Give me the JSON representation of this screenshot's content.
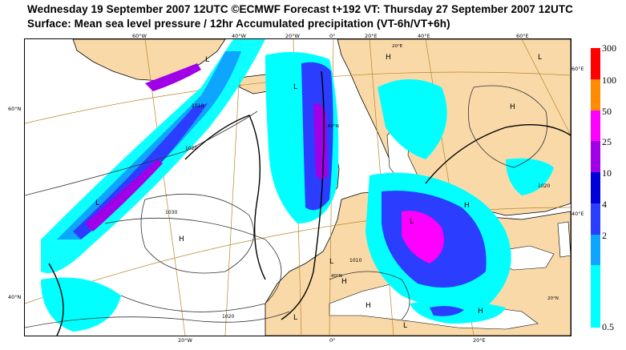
{
  "title": {
    "line1": "Wednesday 19 September 2007 12UTC ©ECMWF Forecast t+192 VT: Thursday 27 September 2007 12UTC",
    "line2": "Surface: Mean sea level pressure / 12hr Accumulated precipitation (VT-6h/VT+6h)"
  },
  "map": {
    "top_lon_labels": [
      "60°W",
      "40°W",
      "20°W",
      "0°",
      "20°E",
      "40°E",
      "60°E"
    ],
    "bottom_lon_labels": [
      "20°W",
      "0°",
      "20°E"
    ],
    "left_lat_labels": [
      "60°N",
      "40°N"
    ],
    "right_lat_labels": [
      "60°E",
      "40°E"
    ],
    "inner_labels": [
      "60°N",
      "40°N",
      "20°E",
      "20°N"
    ],
    "pressure_centres": [
      "L",
      "L",
      "L",
      "L",
      "H",
      "H",
      "H",
      "H",
      "L",
      "L",
      "H",
      "L",
      "H",
      "H",
      "L"
    ],
    "isobar_values": [
      "1010",
      "1020",
      "1020",
      "1030",
      "1010",
      "1020"
    ],
    "colors": {
      "land": "#f9d9a8",
      "sea": "#ffffff",
      "coast": "#000000",
      "graticule": "#b8862b",
      "isobar": "#333333",
      "isobar_bold": "#000000"
    }
  },
  "legend": {
    "levels": [
      "0.5",
      "2",
      "4",
      "10",
      "25",
      "50",
      "100",
      "300"
    ],
    "colors": [
      "#00ffff",
      "#0ea5ff",
      "#2b3dff",
      "#0000d8",
      "#a000e8",
      "#ff00ff",
      "#ff8c00",
      "#ff0000"
    ],
    "band_weights": [
      2,
      1,
      1,
      1,
      1,
      1,
      1,
      1
    ]
  }
}
